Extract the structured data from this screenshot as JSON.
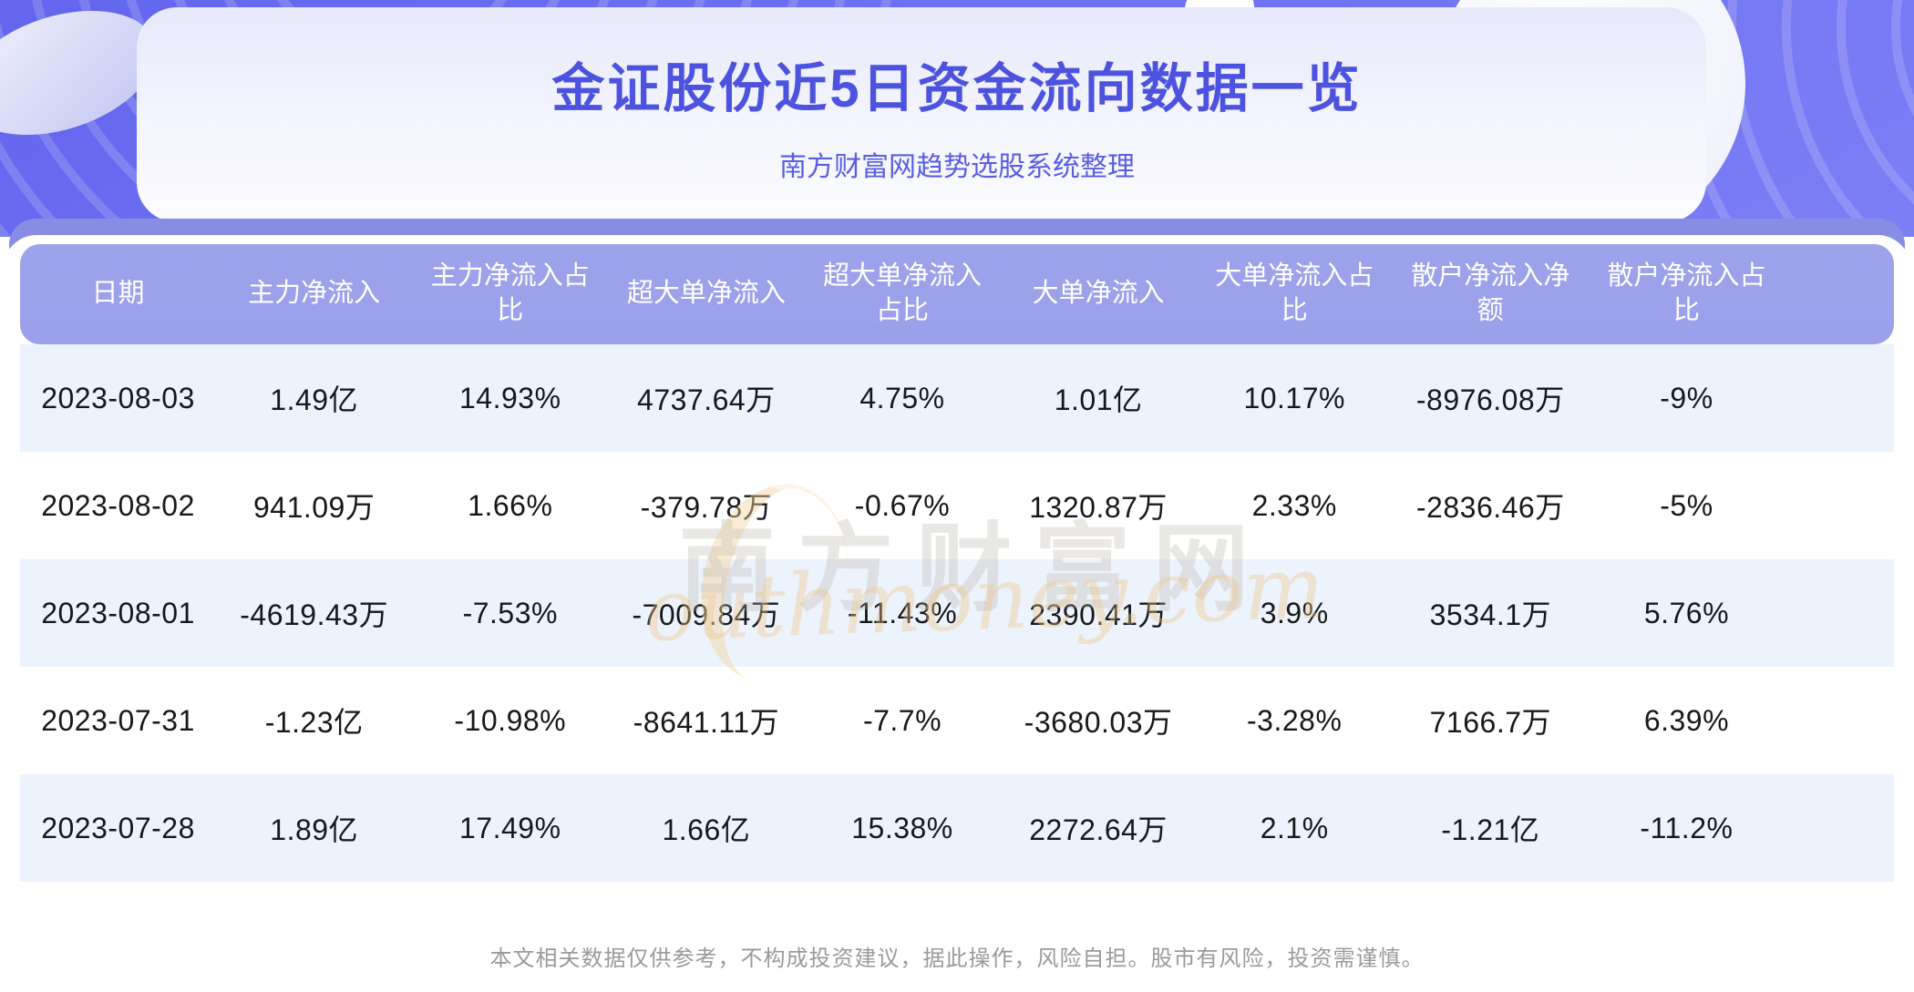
{
  "header": {
    "title": "金证股份近5日资金流向数据一览",
    "subtitle": "南方财富网趋势选股系统整理"
  },
  "watermark": {
    "cn": "南方财富网",
    "en": "outhmoney.com"
  },
  "footer": {
    "disclaimer": "本文相关数据仅供参考，不构成投资建议，据此操作，风险自担。股市有风险，投资需谨慎。"
  },
  "colors": {
    "hero-purple-1": "#6366ee",
    "hero-purple-2": "#7b7ff5",
    "title-color": "#4d53df",
    "subtitle-color": "#585ee2",
    "header-band": "#9aa0e9",
    "card-lip": "#878de3",
    "row-alt": "#edf3fc",
    "data-text": "#17181c",
    "footer-text": "#9a9a9a",
    "watermark-gold": "#ecc589"
  },
  "chart_data": {
    "type": "table",
    "title": "金证股份近5日资金流向数据一览",
    "columns": [
      "日期",
      "主力净流入",
      "主力净流入占比",
      "超大单净流入",
      "超大单净流入占比",
      "大单净流入",
      "大单净流入占比",
      "散户净流入净额",
      "散户净流入占比"
    ],
    "rows": [
      [
        "2023-08-03",
        "1.49亿",
        "14.93%",
        "4737.64万",
        "4.75%",
        "1.01亿",
        "10.17%",
        "-8976.08万",
        "-9%"
      ],
      [
        "2023-08-02",
        "941.09万",
        "1.66%",
        "-379.78万",
        "-0.67%",
        "1320.87万",
        "2.33%",
        "-2836.46万",
        "-5%"
      ],
      [
        "2023-08-01",
        "-4619.43万",
        "-7.53%",
        "-7009.84万",
        "-11.43%",
        "2390.41万",
        "3.9%",
        "3534.1万",
        "5.76%"
      ],
      [
        "2023-07-31",
        "-1.23亿",
        "-10.98%",
        "-8641.11万",
        "-7.7%",
        "-3680.03万",
        "-3.28%",
        "7166.7万",
        "6.39%"
      ],
      [
        "2023-07-28",
        "1.89亿",
        "17.49%",
        "1.66亿",
        "15.38%",
        "2272.64万",
        "2.1%",
        "-1.21亿",
        "-11.2%"
      ]
    ]
  }
}
